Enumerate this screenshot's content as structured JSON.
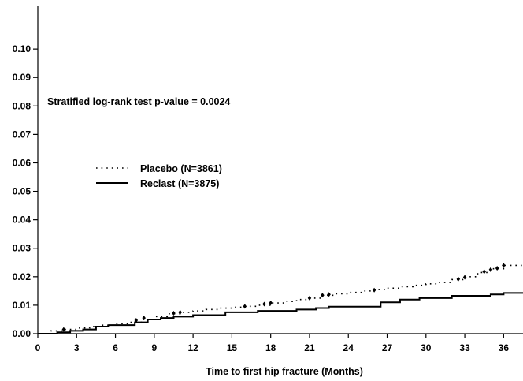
{
  "chart_data": {
    "type": "line",
    "title": "",
    "xlabel": "Time to first hip fracture (Months)",
    "ylabel": "",
    "xlim": [
      0,
      37.5
    ],
    "ylim": [
      0,
      0.115
    ],
    "x_ticks": [
      0,
      3,
      6,
      9,
      12,
      15,
      18,
      21,
      24,
      27,
      30,
      33,
      36
    ],
    "x_tick_labels": [
      "0",
      "3",
      "6",
      "9",
      "12",
      "15",
      "18",
      "21",
      "24",
      "27",
      "30",
      "33",
      "36"
    ],
    "y_ticks": [
      0.0,
      0.01,
      0.02,
      0.03,
      0.04,
      0.05,
      0.06,
      0.07,
      0.08,
      0.09,
      0.1
    ],
    "y_tick_labels": [
      "0.00",
      "0.01",
      "0.02",
      "0.03",
      "0.04",
      "0.05",
      "0.06",
      "0.07",
      "0.08",
      "0.09",
      "0.10"
    ],
    "annotation": "Stratified log-rank test p-value = 0.0024",
    "legend_position": "center-left",
    "grid": false,
    "series": [
      {
        "name": "Placebo (N=3861)",
        "style": "dotted",
        "color": "#000000",
        "x": [
          0,
          1,
          2,
          3,
          4,
          5,
          6,
          7,
          8,
          9,
          10,
          11,
          12,
          13,
          14,
          15,
          16,
          17,
          18,
          19,
          20,
          21,
          22,
          23,
          24,
          25,
          26,
          27,
          28,
          29,
          30,
          31,
          32,
          33,
          34,
          35,
          36,
          37.5
        ],
        "values": [
          0.0,
          0.001,
          0.0015,
          0.002,
          0.0025,
          0.003,
          0.0035,
          0.004,
          0.005,
          0.006,
          0.007,
          0.0075,
          0.008,
          0.0085,
          0.009,
          0.0093,
          0.0096,
          0.01,
          0.0108,
          0.0113,
          0.012,
          0.0125,
          0.0135,
          0.014,
          0.0145,
          0.015,
          0.0155,
          0.016,
          0.0165,
          0.017,
          0.0175,
          0.018,
          0.019,
          0.02,
          0.0215,
          0.0228,
          0.024,
          0.025
        ],
        "censor_markers": [
          [
            2,
            0.0015
          ],
          [
            7.6,
            0.0047
          ],
          [
            8.2,
            0.0055
          ],
          [
            10.5,
            0.0072
          ],
          [
            11,
            0.0075
          ],
          [
            16,
            0.0096
          ],
          [
            17.5,
            0.0104
          ],
          [
            18,
            0.0108
          ],
          [
            21,
            0.0125
          ],
          [
            22,
            0.0135
          ],
          [
            22.5,
            0.0138
          ],
          [
            26,
            0.0153
          ],
          [
            32.5,
            0.0192
          ],
          [
            33,
            0.0198
          ],
          [
            34.5,
            0.0218
          ],
          [
            35,
            0.0225
          ],
          [
            35.5,
            0.023
          ],
          [
            36,
            0.024
          ]
        ]
      },
      {
        "name": "Reclast (N=3875)",
        "style": "solid",
        "color": "#000000",
        "x": [
          0,
          1.5,
          2.5,
          3.5,
          4.5,
          5.5,
          7.5,
          8.5,
          9.5,
          10.5,
          12,
          14.5,
          17,
          20,
          21.5,
          22.5,
          26.5,
          28,
          29.5,
          32,
          35,
          36,
          37.5
        ],
        "values": [
          0.0,
          0.0005,
          0.001,
          0.0015,
          0.0025,
          0.003,
          0.004,
          0.005,
          0.0055,
          0.006,
          0.0065,
          0.0075,
          0.008,
          0.0085,
          0.009,
          0.0095,
          0.011,
          0.012,
          0.0125,
          0.0133,
          0.0138,
          0.0143,
          0.0145
        ]
      }
    ]
  }
}
